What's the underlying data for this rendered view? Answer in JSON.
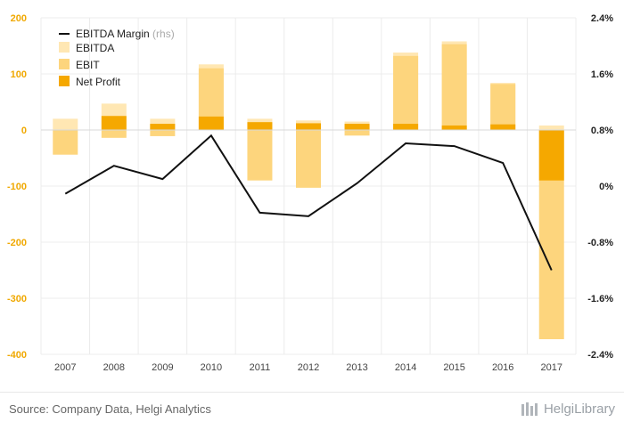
{
  "chart_data": {
    "type": "bar",
    "categories": [
      "2007",
      "2008",
      "2009",
      "2010",
      "2011",
      "2012",
      "2013",
      "2014",
      "2015",
      "2016",
      "2017"
    ],
    "series": [
      {
        "name": "EBITDA",
        "kind": "bar",
        "values": [
          20,
          47,
          20,
          117,
          20,
          17,
          15,
          138,
          158,
          84,
          8
        ],
        "negatives": [
          -44,
          -14,
          -11,
          0,
          -90,
          -103,
          -10,
          0,
          0,
          0,
          -373
        ]
      },
      {
        "name": "EBIT",
        "kind": "bar",
        "values": [
          0,
          0,
          0,
          110,
          0,
          0,
          0,
          132,
          153,
          82,
          0
        ],
        "negatives": [
          -44,
          -14,
          -11,
          0,
          -90,
          -103,
          -10,
          0,
          0,
          0,
          -373
        ]
      },
      {
        "name": "Net Profit",
        "kind": "bar",
        "values": [
          0,
          25,
          11,
          24,
          14,
          12,
          11,
          11,
          8,
          10,
          0
        ],
        "negatives": [
          0,
          0,
          0,
          0,
          0,
          0,
          0,
          0,
          0,
          0,
          -90
        ]
      },
      {
        "name": "EBITDA Margin",
        "kind": "line",
        "axis": "right",
        "values": [
          -0.11,
          0.29,
          0.1,
          0.72,
          -0.38,
          -0.43,
          0.04,
          0.61,
          0.57,
          0.33,
          -1.2
        ]
      }
    ],
    "legend_sub": "(rhs)",
    "ylim_left": [
      -400,
      200
    ],
    "yticks_left": [
      "200",
      "100",
      "0",
      "-100",
      "-200",
      "-300",
      "-400"
    ],
    "ylim_right": [
      -2.4,
      2.4
    ],
    "yticks_right": [
      "2.4%",
      "1.6%",
      "0.8%",
      "0%",
      "-0.8%",
      "-1.6%",
      "-2.4%"
    ],
    "legend_position": "top-left",
    "grid": true,
    "colors": {
      "ebitda": "#ffe7b3",
      "ebit": "#fdd57d",
      "net_profit": "#f5a800",
      "margin_line": "#111111",
      "left_axis": "#f0a800"
    }
  },
  "footer": {
    "source": "Source: Company Data, Helgi Analytics",
    "logo": "HelgiLibrary"
  }
}
